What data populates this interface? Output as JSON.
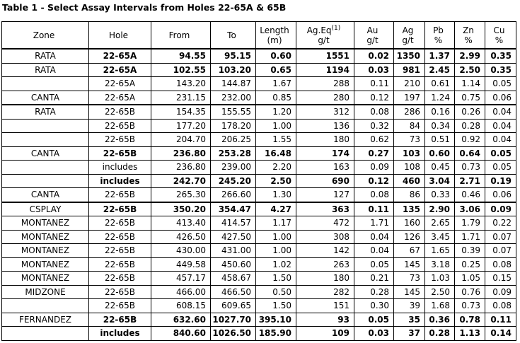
{
  "title": "Table 1 - Select Assay Intervals from Holes 22-65A & 65B",
  "table": {
    "header": [
      {
        "lines": [
          "Zone"
        ]
      },
      {
        "lines": [
          "Hole"
        ]
      },
      {
        "lines": [
          "From"
        ]
      },
      {
        "lines": [
          "To"
        ]
      },
      {
        "lines": [
          "Length",
          "(m)"
        ]
      },
      {
        "lines": [
          "Ag.Eq",
          "g/t"
        ],
        "sup": "(1)"
      },
      {
        "lines": [
          "Au",
          "g/t"
        ]
      },
      {
        "lines": [
          "Ag",
          "g/t"
        ]
      },
      {
        "lines": [
          "Pb",
          "%"
        ]
      },
      {
        "lines": [
          "Zn",
          "%"
        ]
      },
      {
        "lines": [
          "Cu",
          "%"
        ]
      }
    ],
    "rows": [
      {
        "bold": true,
        "cells": [
          "RATA",
          "22-65A",
          "94.55",
          "95.15",
          "0.60",
          "1551",
          "0.02",
          "1350",
          "1.37",
          "2.99",
          "0.35"
        ]
      },
      {
        "bold": true,
        "cells": [
          "RATA",
          "22-65A",
          "102.55",
          "103.20",
          "0.65",
          "1194",
          "0.03",
          "981",
          "2.45",
          "2.50",
          "0.35"
        ]
      },
      {
        "bold": false,
        "cells": [
          null,
          "22-65A",
          "143.20",
          "144.87",
          "1.67",
          "288",
          "0.11",
          "210",
          "0.61",
          "1.14",
          "0.05"
        ]
      },
      {
        "bold": false,
        "cells": [
          "CANTA",
          "22-65A",
          "231.15",
          "232.00",
          "0.85",
          "280",
          "0.12",
          "197",
          "1.24",
          "0.75",
          "0.06"
        ]
      },
      {
        "bold": false,
        "cells": [
          "RATA",
          "22-65B",
          "154.35",
          "155.55",
          "1.20",
          "312",
          "0.08",
          "286",
          "0.16",
          "0.26",
          "0.04"
        ]
      },
      {
        "bold": false,
        "cells": [
          null,
          "22-65B",
          "177.20",
          "178.20",
          "1.00",
          "136",
          "0.32",
          "84",
          "0.34",
          "0.28",
          "0.04"
        ]
      },
      {
        "bold": false,
        "cells": [
          null,
          "22-65B",
          "204.70",
          "206.25",
          "1.55",
          "180",
          "0.62",
          "73",
          "0.51",
          "0.92",
          "0.04"
        ]
      },
      {
        "bold": true,
        "cells": [
          "CANTA",
          "22-65B",
          "236.80",
          "253.28",
          "16.48",
          "174",
          "0.27",
          "103",
          "0.60",
          "0.64",
          "0.05"
        ]
      },
      {
        "bold": false,
        "cells": [
          null,
          "includes",
          "236.80",
          "239.00",
          "2.20",
          "163",
          "0.09",
          "108",
          "0.45",
          "0.73",
          "0.05"
        ]
      },
      {
        "bold": true,
        "cells": [
          null,
          "includes",
          "242.70",
          "245.20",
          "2.50",
          "690",
          "0.12",
          "460",
          "3.04",
          "2.71",
          "0.19"
        ]
      },
      {
        "bold": false,
        "cells": [
          "CANTA",
          "22-65B",
          "265.30",
          "266.60",
          "1.30",
          "127",
          "0.08",
          "86",
          "0.33",
          "0.46",
          "0.06"
        ]
      },
      {
        "bold": true,
        "cells": [
          "CSPLAY",
          "22-65B",
          "350.20",
          "354.47",
          "4.27",
          "363",
          "0.11",
          "135",
          "2.90",
          "3.06",
          "0.09"
        ]
      },
      {
        "bold": false,
        "cells": [
          "MONTANEZ",
          "22-65B",
          "413.40",
          "414.57",
          "1.17",
          "472",
          "1.71",
          "160",
          "2.65",
          "1.79",
          "0.22"
        ]
      },
      {
        "bold": false,
        "cells": [
          "MONTANEZ",
          "22-65B",
          "426.50",
          "427.50",
          "1.00",
          "308",
          "0.04",
          "126",
          "3.45",
          "1.71",
          "0.07"
        ]
      },
      {
        "bold": false,
        "cells": [
          "MONTANEZ",
          "22-65B",
          "430.00",
          "431.00",
          "1.00",
          "142",
          "0.04",
          "67",
          "1.65",
          "0.39",
          "0.07"
        ]
      },
      {
        "bold": false,
        "cells": [
          "MONTANEZ",
          "22-65B",
          "449.58",
          "450.60",
          "1.02",
          "263",
          "0.05",
          "145",
          "3.18",
          "0.25",
          "0.08"
        ]
      },
      {
        "bold": false,
        "cells": [
          "MONTANEZ",
          "22-65B",
          "457.17",
          "458.67",
          "1.50",
          "180",
          "0.21",
          "73",
          "1.03",
          "1.05",
          "0.15"
        ]
      },
      {
        "bold": false,
        "cells": [
          "MIDZONE",
          "22-65B",
          "466.00",
          "466.50",
          "0.50",
          "282",
          "0.28",
          "145",
          "2.50",
          "0.76",
          "0.09"
        ]
      },
      {
        "bold": false,
        "cells": [
          null,
          "22-65B",
          "608.15",
          "609.65",
          "1.50",
          "151",
          "0.30",
          "39",
          "1.68",
          "0.73",
          "0.08"
        ]
      },
      {
        "bold": true,
        "cells": [
          "FERNANDEZ",
          "22-65B",
          "632.60",
          "1027.70",
          "395.10",
          "93",
          "0.05",
          "35",
          "0.36",
          "0.78",
          "0.11"
        ]
      },
      {
        "bold": true,
        "cells": [
          null,
          "includes",
          "840.60",
          "1026.50",
          "185.90",
          "109",
          "0.03",
          "37",
          "0.28",
          "1.13",
          "0.14"
        ]
      }
    ]
  }
}
